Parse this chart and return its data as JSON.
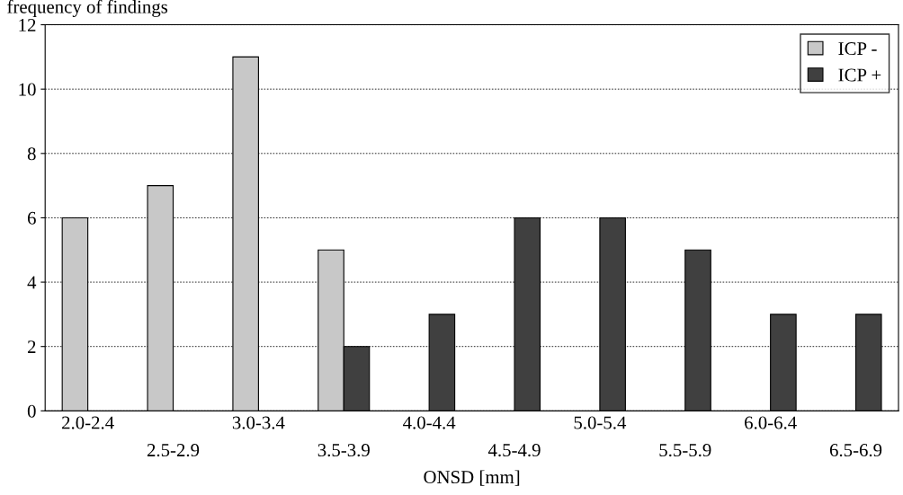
{
  "chart_data": {
    "type": "bar",
    "ylabel": "frequency of findings",
    "xlabel": "ONSD [mm]",
    "categories": [
      "2.0-2.4",
      "2.5-2.9",
      "3.0-3.4",
      "3.5-3.9",
      "4.0-4.4",
      "4.5-4.9",
      "5.0-5.4",
      "5.5-5.9",
      "6.0-6.4",
      "6.5-6.9"
    ],
    "series": [
      {
        "name": "ICP -",
        "color": "#c8c8c8",
        "values": [
          6,
          7,
          11,
          5,
          null,
          null,
          null,
          null,
          null,
          null
        ]
      },
      {
        "name": "ICP +",
        "color": "#404040",
        "values": [
          null,
          null,
          null,
          2,
          3,
          6,
          6,
          5,
          3,
          3
        ]
      }
    ],
    "ylim": [
      0,
      12
    ],
    "yticks": [
      0,
      2,
      4,
      6,
      8,
      10,
      12
    ],
    "grid": "y",
    "legend": "top right"
  }
}
